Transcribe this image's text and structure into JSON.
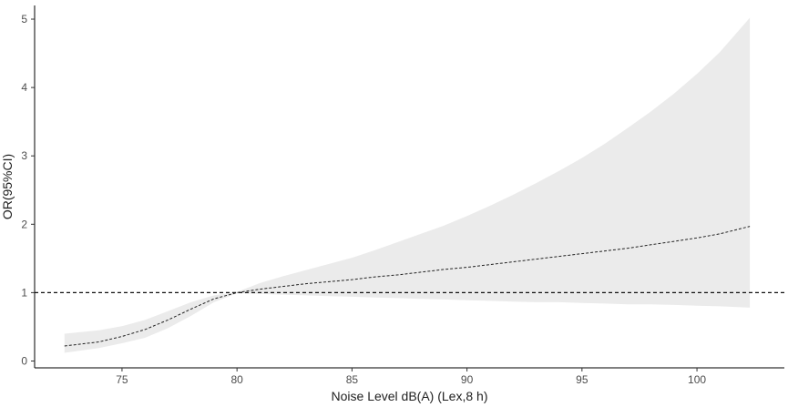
{
  "chart_data": {
    "type": "line",
    "xlabel": "Noise Level dB(A) (Lex,8 h)",
    "ylabel": "OR(95%CI)",
    "xlim": [
      71.2,
      103.8
    ],
    "ylim": [
      -0.1,
      5.2
    ],
    "x_ticks": [
      75,
      80,
      85,
      90,
      95,
      100
    ],
    "y_ticks": [
      0,
      1,
      2,
      3,
      4,
      5
    ],
    "grid": false,
    "reference_line": {
      "y": 1,
      "style": "dashed"
    },
    "series": [
      {
        "style": "dashed",
        "x": [
          72.5,
          74,
          75,
          76,
          77,
          78,
          79,
          80,
          81,
          82,
          83,
          84,
          85,
          86,
          87,
          88,
          89,
          90,
          91,
          92,
          93,
          94,
          95,
          96,
          97,
          98,
          99,
          100,
          101,
          102.3
        ],
        "y": [
          0.22,
          0.28,
          0.36,
          0.46,
          0.6,
          0.76,
          0.91,
          1.0,
          1.05,
          1.09,
          1.13,
          1.16,
          1.19,
          1.23,
          1.26,
          1.3,
          1.34,
          1.37,
          1.41,
          1.45,
          1.49,
          1.53,
          1.57,
          1.61,
          1.65,
          1.7,
          1.75,
          1.8,
          1.86,
          1.97
        ]
      }
    ],
    "confidence_band": {
      "color": "#ebebeb",
      "x": [
        72.5,
        74,
        75,
        76,
        77,
        78,
        79,
        80,
        81,
        82,
        83,
        84,
        85,
        86,
        87,
        88,
        89,
        90,
        91,
        92,
        93,
        94,
        95,
        96,
        97,
        98,
        99,
        100,
        101,
        102.3
      ],
      "lower": [
        0.12,
        0.19,
        0.26,
        0.34,
        0.48,
        0.66,
        0.86,
        0.99,
        0.98,
        0.97,
        0.96,
        0.95,
        0.94,
        0.93,
        0.92,
        0.91,
        0.9,
        0.89,
        0.88,
        0.87,
        0.86,
        0.86,
        0.85,
        0.84,
        0.83,
        0.83,
        0.82,
        0.81,
        0.8,
        0.78
      ],
      "upper": [
        0.4,
        0.45,
        0.51,
        0.6,
        0.73,
        0.86,
        0.96,
        1.01,
        1.14,
        1.24,
        1.33,
        1.42,
        1.51,
        1.62,
        1.74,
        1.86,
        1.98,
        2.12,
        2.27,
        2.43,
        2.6,
        2.78,
        2.97,
        3.18,
        3.41,
        3.65,
        3.91,
        4.2,
        4.52,
        5.02
      ]
    }
  }
}
